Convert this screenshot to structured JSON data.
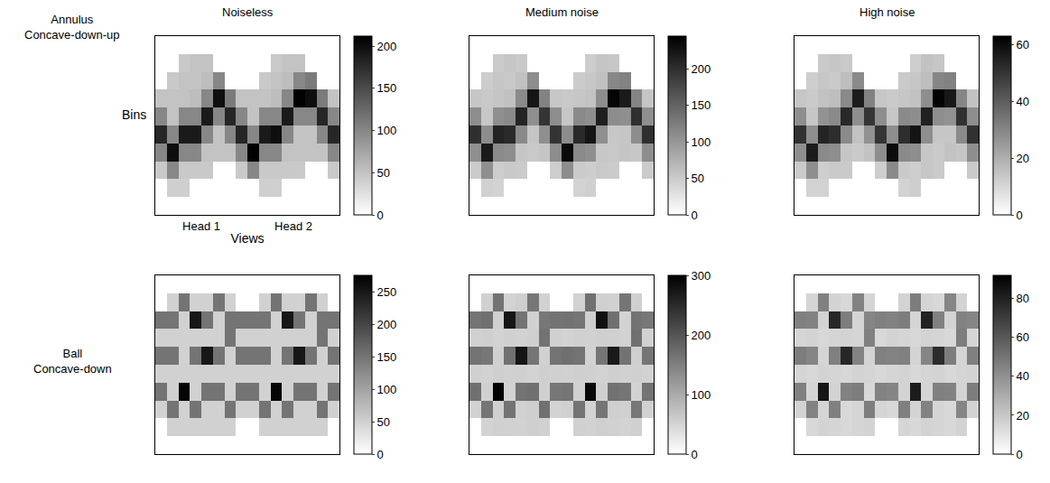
{
  "chart_data": [
    {
      "type": "heatmap",
      "title": "Noiseless",
      "annotation": [
        "Annulus",
        "Concave-down-up"
      ],
      "x_label": "Views",
      "y_label": "Bins",
      "xlim": [
        -0.5,
        15.5
      ],
      "ylim": [
        9.5,
        -0.5
      ],
      "xticks": [
        {
          "value": 3.5,
          "label": "Head 1"
        },
        {
          "value": 11.5,
          "label": "Head 2"
        }
      ],
      "zlim": [
        0,
        212
      ],
      "zticks": [
        0,
        50,
        100,
        150,
        200
      ],
      "z": [
        [
          0,
          0,
          0,
          0,
          0,
          0,
          0,
          0,
          0,
          0,
          0,
          0,
          0,
          0,
          0,
          0
        ],
        [
          0,
          0,
          45,
          50,
          50,
          0,
          0,
          0,
          0,
          0,
          45,
          50,
          50,
          0,
          0,
          0
        ],
        [
          0,
          45,
          50,
          50,
          55,
          100,
          0,
          0,
          0,
          45,
          50,
          55,
          100,
          110,
          0,
          0
        ],
        [
          50,
          50,
          50,
          55,
          100,
          200,
          110,
          50,
          50,
          50,
          55,
          100,
          210,
          200,
          110,
          50
        ],
        [
          100,
          50,
          100,
          100,
          190,
          100,
          180,
          100,
          50,
          100,
          100,
          190,
          100,
          100,
          180,
          100
        ],
        [
          180,
          100,
          190,
          190,
          100,
          50,
          100,
          180,
          100,
          190,
          200,
          100,
          50,
          50,
          100,
          180
        ],
        [
          100,
          200,
          100,
          100,
          50,
          50,
          50,
          100,
          210,
          100,
          100,
          50,
          50,
          50,
          50,
          100
        ],
        [
          45,
          100,
          45,
          45,
          45,
          0,
          0,
          45,
          100,
          45,
          45,
          45,
          45,
          0,
          0,
          45
        ],
        [
          0,
          40,
          40,
          0,
          0,
          0,
          0,
          0,
          0,
          40,
          40,
          0,
          0,
          0,
          0,
          0
        ],
        [
          0,
          0,
          0,
          0,
          0,
          0,
          0,
          0,
          0,
          0,
          0,
          0,
          0,
          0,
          0,
          0
        ]
      ]
    },
    {
      "type": "heatmap",
      "title": "Medium noise",
      "tick_labels": false,
      "xlim": [
        -0.5,
        15.5
      ],
      "ylim": [
        9.5,
        -0.5
      ],
      "zlim": [
        0,
        245
      ],
      "zticks": [
        0,
        50,
        100,
        150,
        200
      ],
      "z": [
        [
          0,
          0,
          0,
          0,
          0,
          0,
          0,
          0,
          0,
          0,
          0,
          0,
          0,
          0,
          0,
          0
        ],
        [
          0,
          0,
          50,
          55,
          52,
          0,
          0,
          0,
          0,
          0,
          48,
          56,
          54,
          0,
          0,
          0
        ],
        [
          0,
          48,
          55,
          53,
          60,
          110,
          0,
          0,
          0,
          50,
          54,
          60,
          115,
          120,
          0,
          0
        ],
        [
          55,
          52,
          56,
          60,
          112,
          225,
          120,
          54,
          52,
          55,
          58,
          110,
          240,
          220,
          118,
          56
        ],
        [
          110,
          54,
          108,
          112,
          210,
          108,
          195,
          110,
          55,
          112,
          108,
          215,
          110,
          108,
          200,
          108
        ],
        [
          200,
          110,
          210,
          205,
          112,
          56,
          108,
          195,
          110,
          205,
          225,
          108,
          54,
          55,
          110,
          200
        ],
        [
          108,
          220,
          112,
          110,
          55,
          52,
          56,
          110,
          235,
          112,
          108,
          54,
          52,
          56,
          54,
          110
        ],
        [
          50,
          108,
          48,
          52,
          50,
          0,
          0,
          48,
          110,
          50,
          48,
          52,
          50,
          0,
          0,
          50
        ],
        [
          0,
          44,
          42,
          0,
          0,
          0,
          0,
          0,
          0,
          42,
          45,
          0,
          0,
          0,
          0,
          0
        ],
        [
          0,
          0,
          0,
          0,
          0,
          0,
          0,
          0,
          0,
          0,
          0,
          0,
          0,
          0,
          0,
          0
        ]
      ]
    },
    {
      "type": "heatmap",
      "title": "High noise",
      "tick_labels": false,
      "xlim": [
        -0.5,
        15.5
      ],
      "ylim": [
        9.5,
        -0.5
      ],
      "zlim": [
        0,
        63
      ],
      "zticks": [
        0,
        20,
        40,
        60
      ],
      "z": [
        [
          0,
          0,
          0,
          0,
          0,
          0,
          0,
          0,
          0,
          0,
          0,
          0,
          0,
          0,
          0,
          0
        ],
        [
          0,
          0,
          13,
          14,
          13,
          0,
          0,
          0,
          0,
          0,
          12,
          15,
          14,
          0,
          0,
          0
        ],
        [
          0,
          12,
          14,
          13,
          16,
          29,
          0,
          0,
          0,
          13,
          14,
          16,
          30,
          31,
          0,
          0
        ],
        [
          14,
          13,
          15,
          16,
          29,
          56,
          31,
          14,
          13,
          14,
          15,
          28,
          62,
          57,
          30,
          15
        ],
        [
          28,
          14,
          27,
          29,
          53,
          28,
          50,
          28,
          14,
          29,
          28,
          55,
          28,
          27,
          51,
          28
        ],
        [
          51,
          28,
          54,
          52,
          29,
          15,
          27,
          50,
          28,
          52,
          58,
          28,
          14,
          14,
          29,
          51
        ],
        [
          28,
          56,
          29,
          28,
          14,
          13,
          15,
          28,
          60,
          29,
          28,
          14,
          13,
          15,
          14,
          28
        ],
        [
          13,
          28,
          12,
          13,
          13,
          0,
          0,
          12,
          29,
          13,
          12,
          14,
          13,
          0,
          0,
          13
        ],
        [
          0,
          11,
          11,
          0,
          0,
          0,
          0,
          0,
          0,
          11,
          12,
          0,
          0,
          0,
          0,
          0
        ],
        [
          0,
          0,
          0,
          0,
          0,
          0,
          0,
          0,
          0,
          0,
          0,
          0,
          0,
          0,
          0,
          0
        ]
      ]
    },
    {
      "type": "heatmap",
      "annotation": [
        "Ball",
        "Concave-down"
      ],
      "tick_labels": false,
      "xlim": [
        -0.5,
        15.5
      ],
      "ylim": [
        9.5,
        -0.5
      ],
      "zlim": [
        0,
        275
      ],
      "zticks": [
        0,
        50,
        100,
        150,
        200,
        250
      ],
      "z": [
        [
          0,
          0,
          0,
          0,
          0,
          0,
          0,
          0,
          0,
          0,
          0,
          0,
          0,
          0,
          0,
          0
        ],
        [
          0,
          50,
          150,
          50,
          50,
          150,
          50,
          0,
          0,
          50,
          150,
          50,
          50,
          150,
          50,
          0
        ],
        [
          150,
          150,
          50,
          250,
          150,
          50,
          150,
          150,
          150,
          150,
          50,
          250,
          150,
          50,
          150,
          150
        ],
        [
          50,
          50,
          50,
          50,
          50,
          50,
          150,
          50,
          50,
          50,
          50,
          50,
          50,
          50,
          150,
          50
        ],
        [
          150,
          150,
          50,
          150,
          250,
          150,
          50,
          150,
          150,
          150,
          50,
          150,
          250,
          150,
          50,
          150
        ],
        [
          50,
          50,
          50,
          50,
          50,
          50,
          50,
          50,
          50,
          50,
          50,
          50,
          50,
          50,
          50,
          50
        ],
        [
          150,
          50,
          270,
          50,
          150,
          150,
          50,
          150,
          150,
          50,
          270,
          50,
          150,
          150,
          50,
          150
        ],
        [
          50,
          150,
          50,
          150,
          50,
          50,
          150,
          50,
          50,
          150,
          50,
          150,
          50,
          50,
          150,
          50
        ],
        [
          0,
          50,
          50,
          50,
          50,
          50,
          50,
          0,
          0,
          50,
          50,
          50,
          50,
          50,
          50,
          0
        ],
        [
          0,
          0,
          0,
          0,
          0,
          0,
          0,
          0,
          0,
          0,
          0,
          0,
          0,
          0,
          0,
          0
        ]
      ]
    },
    {
      "type": "heatmap",
      "tick_labels": false,
      "xlim": [
        -0.5,
        15.5
      ],
      "ylim": [
        9.5,
        -0.5
      ],
      "zlim": [
        0,
        300
      ],
      "zticks": [
        0,
        100,
        200,
        300
      ],
      "z": [
        [
          0,
          0,
          0,
          0,
          0,
          0,
          0,
          0,
          0,
          0,
          0,
          0,
          0,
          0,
          0,
          0
        ],
        [
          0,
          55,
          165,
          52,
          56,
          160,
          54,
          0,
          0,
          53,
          168,
          55,
          54,
          162,
          56,
          0
        ],
        [
          162,
          168,
          55,
          275,
          165,
          54,
          160,
          165,
          166,
          162,
          56,
          280,
          168,
          52,
          165,
          160
        ],
        [
          54,
          56,
          52,
          55,
          53,
          56,
          165,
          55,
          52,
          55,
          54,
          56,
          55,
          53,
          168,
          54
        ],
        [
          165,
          160,
          55,
          168,
          275,
          162,
          54,
          165,
          168,
          165,
          53,
          162,
          270,
          165,
          56,
          162
        ],
        [
          55,
          53,
          56,
          54,
          55,
          52,
          56,
          55,
          54,
          56,
          55,
          53,
          56,
          54,
          55,
          53
        ],
        [
          168,
          55,
          295,
          53,
          165,
          168,
          55,
          160,
          162,
          54,
          290,
          56,
          166,
          162,
          53,
          165
        ],
        [
          53,
          162,
          55,
          165,
          54,
          56,
          168,
          52,
          55,
          165,
          53,
          162,
          56,
          55,
          160,
          54
        ],
        [
          0,
          52,
          55,
          54,
          53,
          56,
          54,
          0,
          0,
          55,
          53,
          56,
          54,
          52,
          55,
          0
        ],
        [
          0,
          0,
          0,
          0,
          0,
          0,
          0,
          0,
          0,
          0,
          0,
          0,
          0,
          0,
          0,
          0
        ]
      ]
    },
    {
      "type": "heatmap",
      "title": "",
      "tick_labels": false,
      "xlim": [
        -0.5,
        15.5
      ],
      "ylim": [
        9.5,
        -0.5
      ],
      "zlim": [
        0,
        92
      ],
      "zticks": [
        0,
        20,
        40,
        60,
        80
      ],
      "z": [
        [
          0,
          0,
          0,
          0,
          0,
          0,
          0,
          0,
          0,
          0,
          0,
          0,
          0,
          0,
          0,
          0
        ],
        [
          0,
          15,
          46,
          16,
          14,
          45,
          15,
          0,
          0,
          16,
          47,
          15,
          14,
          44,
          16,
          0
        ],
        [
          46,
          45,
          16,
          78,
          47,
          15,
          44,
          46,
          45,
          47,
          15,
          80,
          46,
          16,
          45,
          44
        ],
        [
          15,
          16,
          14,
          15,
          16,
          15,
          46,
          14,
          16,
          15,
          14,
          16,
          15,
          14,
          47,
          15
        ],
        [
          47,
          44,
          15,
          46,
          78,
          45,
          16,
          46,
          45,
          46,
          16,
          44,
          76,
          47,
          15,
          46
        ],
        [
          15,
          14,
          16,
          15,
          14,
          16,
          15,
          14,
          15,
          16,
          14,
          15,
          16,
          14,
          15,
          16
        ],
        [
          46,
          15,
          84,
          16,
          45,
          47,
          14,
          45,
          44,
          16,
          82,
          15,
          46,
          45,
          16,
          47
        ],
        [
          16,
          45,
          15,
          46,
          14,
          15,
          47,
          15,
          14,
          46,
          16,
          45,
          15,
          14,
          44,
          16
        ],
        [
          0,
          14,
          16,
          15,
          14,
          15,
          16,
          0,
          0,
          15,
          14,
          16,
          15,
          14,
          16,
          0
        ],
        [
          0,
          0,
          0,
          0,
          0,
          0,
          0,
          0,
          0,
          0,
          0,
          0,
          0,
          0,
          0,
          0
        ]
      ]
    }
  ]
}
